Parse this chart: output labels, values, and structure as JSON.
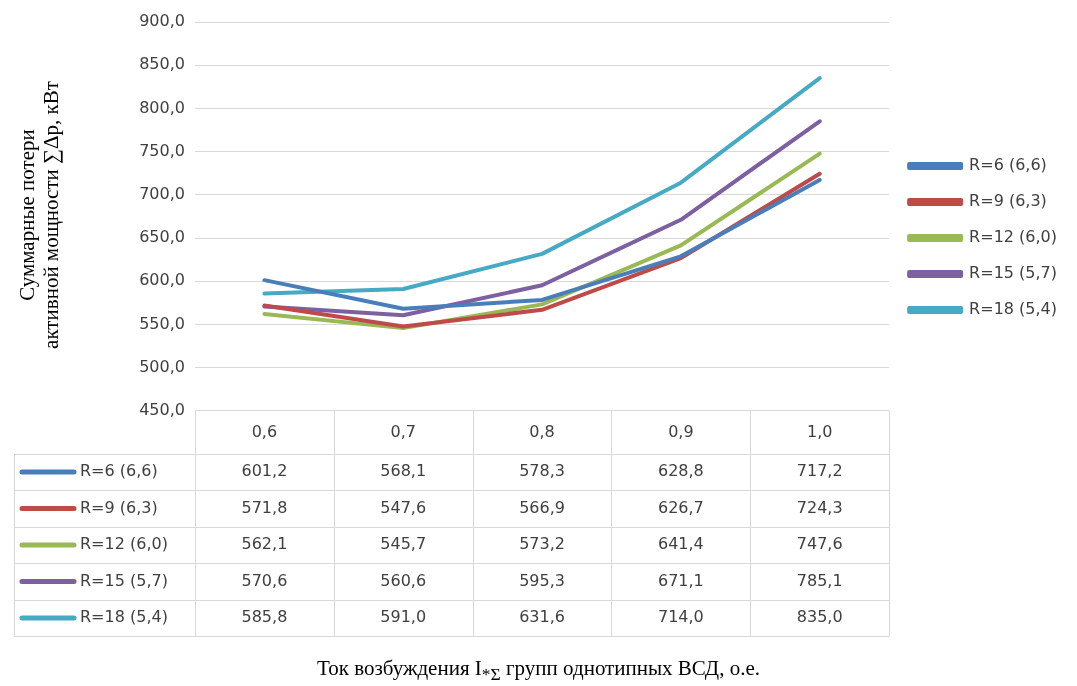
{
  "chart_data": {
    "type": "line",
    "annotations": [
      "Ток возбуждения I$_{*Σ}$ групп однотипных ВСД, о.е."
    ],
    "ylabel": "Суммарные потери\nактивной мощности ∑Δp, кВт",
    "categories": [
      "0,6",
      "0,7",
      "0,8",
      "0,9",
      "1,0"
    ],
    "series": [
      {
        "name": "R=6 (6,6)",
        "color": "#4a7ebb",
        "values": [
          601.2,
          568.1,
          578.3,
          628.8,
          717.2
        ],
        "value_labels": [
          "601,2",
          "568,1",
          "578,3",
          "628,8",
          "717,2"
        ]
      },
      {
        "name": "R=9 (6,3)",
        "color": "#be4b48",
        "values": [
          571.8,
          547.6,
          566.9,
          626.7,
          724.3
        ],
        "value_labels": [
          "571,8",
          "547,6",
          "566,9",
          "626,7",
          "724,3"
        ]
      },
      {
        "name": "R=12 (6,0)",
        "color": "#98b954",
        "values": [
          562.1,
          545.7,
          573.2,
          641.4,
          747.6
        ],
        "value_labels": [
          "562,1",
          "545,7",
          "573,2",
          "641,4",
          "747,6"
        ]
      },
      {
        "name": "R=15 (5,7)",
        "color": "#7d60a0",
        "values": [
          570.6,
          560.6,
          595.3,
          671.1,
          785.1
        ],
        "value_labels": [
          "570,6",
          "560,6",
          "595,3",
          "671,1",
          "785,1"
        ]
      },
      {
        "name": "R=18 (5,4)",
        "color": "#46aac5",
        "values": [
          585.8,
          591.0,
          631.6,
          714.0,
          835.0
        ],
        "value_labels": [
          "585,8",
          "591,0",
          "631,6",
          "714,0",
          "835,0"
        ]
      }
    ],
    "ylim": [
      450,
      900
    ],
    "yticks": [
      {
        "value": 450,
        "label": "450,0"
      },
      {
        "value": 500,
        "label": "500,0"
      },
      {
        "value": 550,
        "label": "550,0"
      },
      {
        "value": 600,
        "label": "600,0"
      },
      {
        "value": 650,
        "label": "650,0"
      },
      {
        "value": 700,
        "label": "700,0"
      },
      {
        "value": 750,
        "label": "750,0"
      },
      {
        "value": 800,
        "label": "800,0"
      },
      {
        "value": 850,
        "label": "850,0"
      },
      {
        "value": 900,
        "label": "900,0"
      }
    ],
    "grid": "y",
    "legend": "right",
    "marker": "none",
    "line_style": "solid"
  }
}
